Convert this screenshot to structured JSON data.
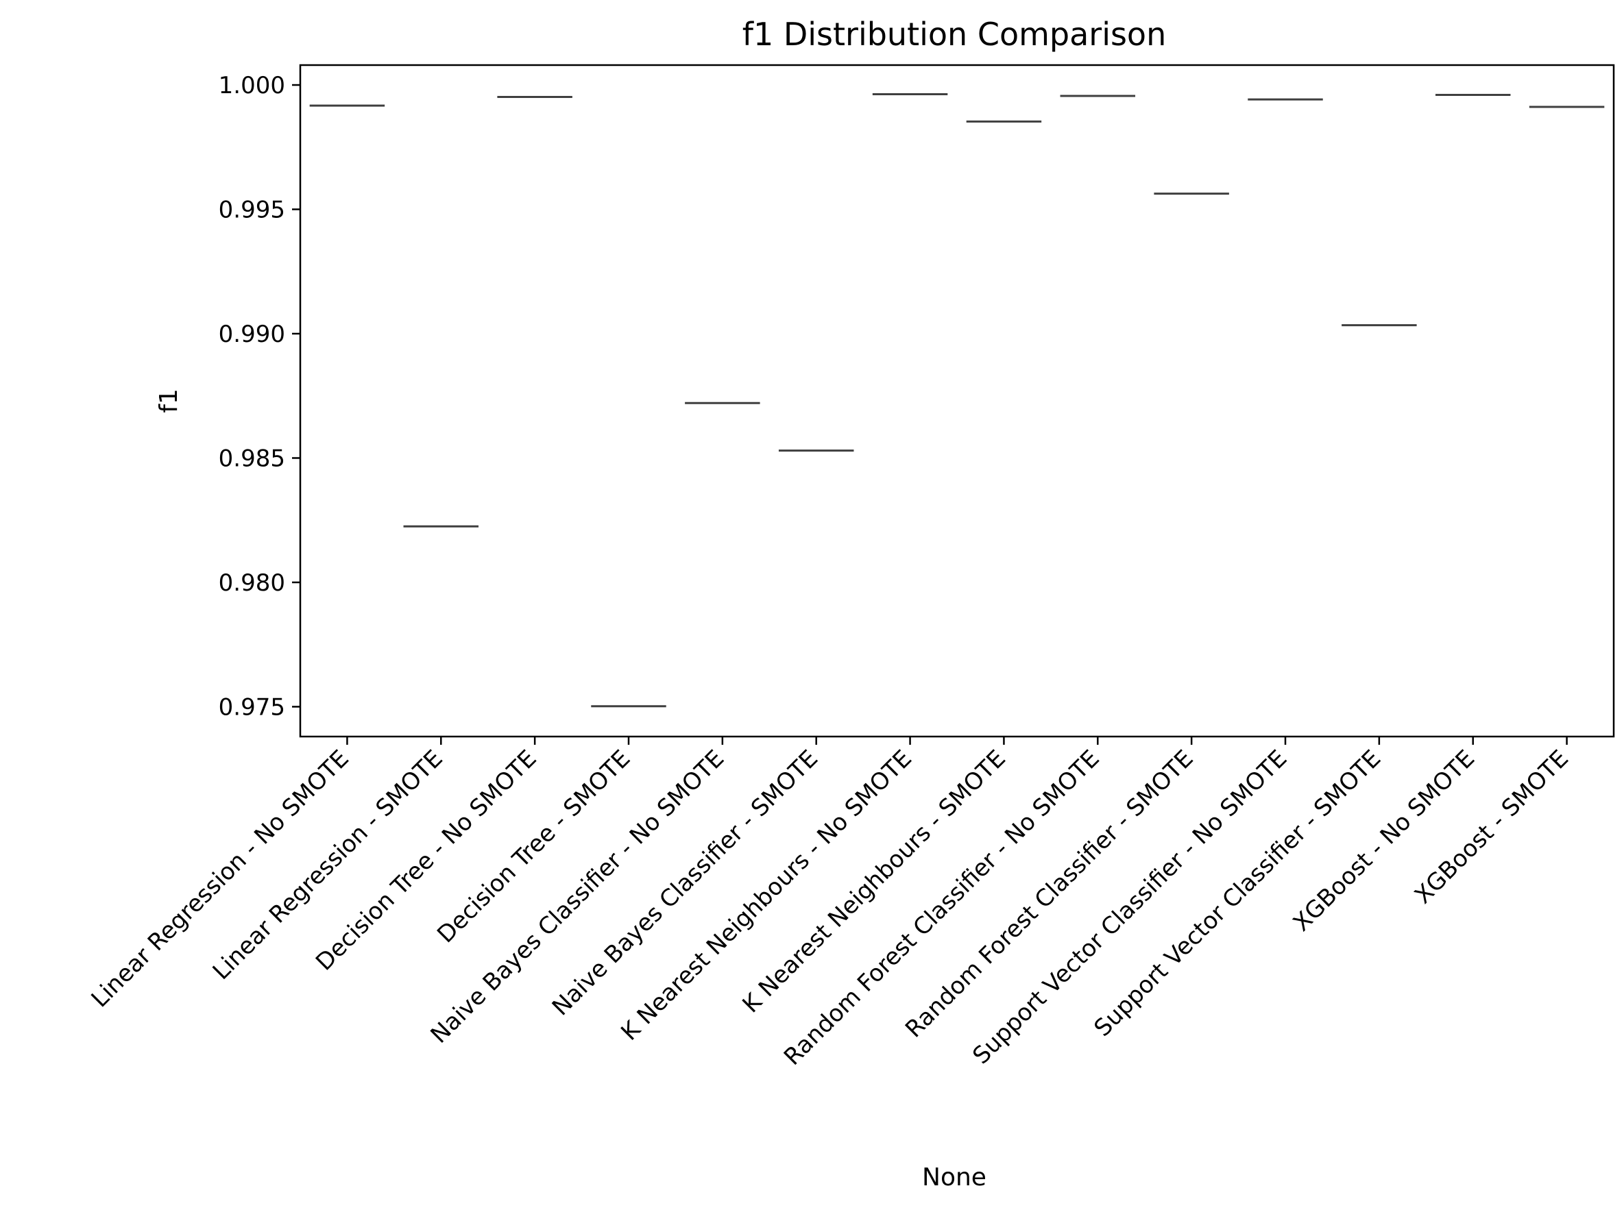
{
  "chart_data": {
    "type": "box",
    "title": "f1 Distribution Comparison",
    "xlabel": "None",
    "ylabel": "f1",
    "ylim": [
      0.9738,
      1.0008
    ],
    "yticks": [
      "1.000",
      "0.995",
      "0.990",
      "0.985",
      "0.980",
      "0.975"
    ],
    "ytick_values": [
      1.0,
      0.995,
      0.99,
      0.985,
      0.98,
      0.975
    ],
    "grid": false,
    "legend": "none",
    "categories": [
      "Linear Regression - No SMOTE",
      "Linear Regression - SMOTE",
      "Decision Tree - No SMOTE",
      "Decision Tree - SMOTE",
      "Naive Bayes Classifier - No SMOTE",
      "Naive Bayes Classifier - SMOTE",
      "K Nearest Neighbours - No SMOTE",
      "K Nearest Neighbours - SMOTE",
      "Random Forest Classifier - No SMOTE",
      "Random Forest Classifier - SMOTE",
      "Support Vector Classifier - No SMOTE",
      "Support Vector Classifier - SMOTE",
      "XGBoost - No SMOTE",
      "XGBoost - SMOTE"
    ],
    "values": [
      0.99917,
      0.98225,
      0.99952,
      0.97502,
      0.98721,
      0.9853,
      0.99963,
      0.99853,
      0.99956,
      0.99563,
      0.99942,
      0.99034,
      0.9996,
      0.99912
    ],
    "line_color": "#3f3f3f"
  }
}
